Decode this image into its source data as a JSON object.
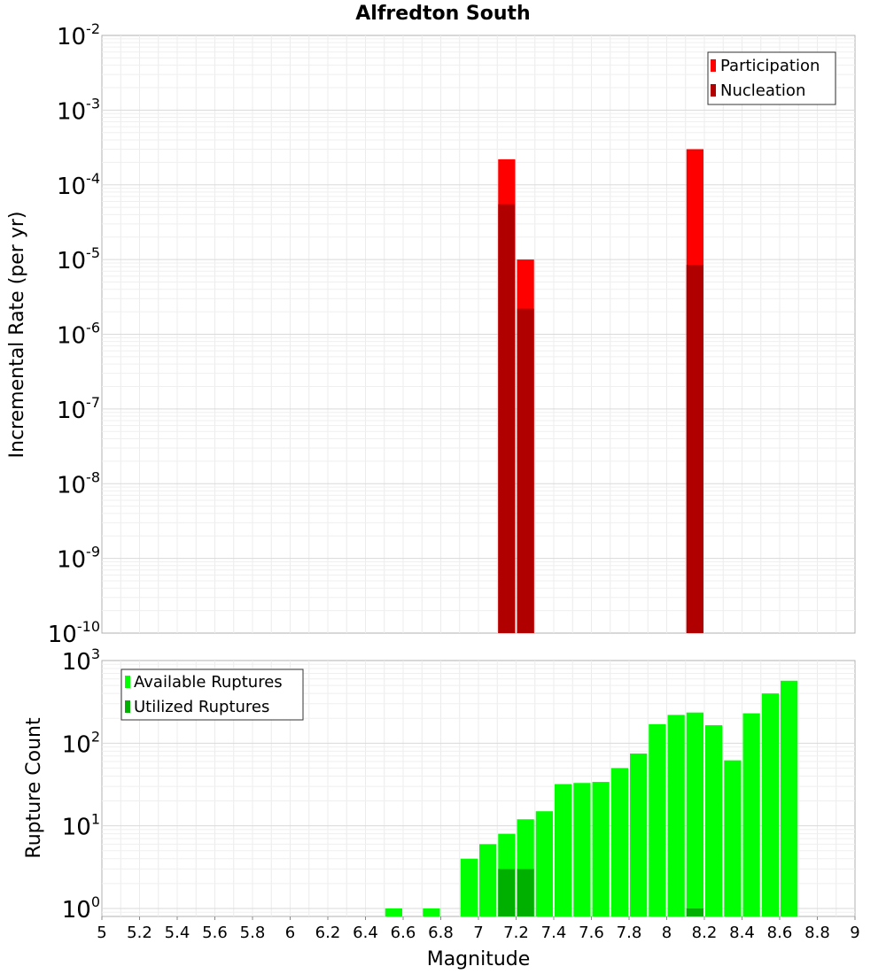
{
  "chart_data": [
    {
      "type": "bar",
      "title": "Alfredton South",
      "xlabel": "",
      "ylabel": "Incremental Rate (per yr)",
      "yscale": "log",
      "xlim": [
        5,
        9
      ],
      "ylim": [
        1e-10,
        0.01
      ],
      "bin_width": 0.1,
      "grid": true,
      "legend_position": "top-right",
      "yticks": [
        {
          "base": "10",
          "exp": "-2"
        },
        {
          "base": "10",
          "exp": "-3"
        },
        {
          "base": "10",
          "exp": "-4"
        },
        {
          "base": "10",
          "exp": "-5"
        },
        {
          "base": "10",
          "exp": "-6"
        },
        {
          "base": "10",
          "exp": "-7"
        },
        {
          "base": "10",
          "exp": "-8"
        },
        {
          "base": "10",
          "exp": "-9"
        },
        {
          "base": "10",
          "exp": "-10"
        }
      ],
      "series": [
        {
          "name": "Participation",
          "color": "#ff0000",
          "x": [
            7.15,
            7.25,
            8.15
          ],
          "values": [
            0.00022,
            1e-05,
            0.0003
          ]
        },
        {
          "name": "Nucleation",
          "color": "#b00000",
          "x": [
            7.15,
            7.25,
            8.15
          ],
          "values": [
            5.5e-05,
            2.2e-06,
            8.5e-06
          ]
        }
      ]
    },
    {
      "type": "bar",
      "title": "",
      "xlabel": "Magnitude",
      "ylabel": "Rupture Count",
      "yscale": "log",
      "xlim": [
        5,
        9
      ],
      "ylim": [
        0.8,
        1000
      ],
      "bin_width": 0.1,
      "grid": true,
      "legend_position": "top-left",
      "xticks": [
        "5",
        "5.2",
        "5.4",
        "5.6",
        "5.8",
        "6",
        "6.2",
        "6.4",
        "6.6",
        "6.8",
        "7",
        "7.2",
        "7.4",
        "7.6",
        "7.8",
        "8",
        "8.2",
        "8.4",
        "8.6",
        "8.8",
        "9"
      ],
      "yticks": [
        {
          "base": "10",
          "exp": "3"
        },
        {
          "base": "10",
          "exp": "2"
        },
        {
          "base": "10",
          "exp": "1"
        },
        {
          "base": "10",
          "exp": "0"
        }
      ],
      "series": [
        {
          "name": "Available Ruptures",
          "color": "#00ff00",
          "x": [
            6.55,
            6.75,
            6.95,
            7.05,
            7.15,
            7.25,
            7.35,
            7.45,
            7.55,
            7.65,
            7.75,
            7.85,
            7.95,
            8.05,
            8.15,
            8.25,
            8.35,
            8.45,
            8.55,
            8.65
          ],
          "values": [
            1,
            1,
            4,
            6,
            8,
            12,
            15,
            32,
            33,
            34,
            50,
            75,
            170,
            220,
            235,
            165,
            62,
            230,
            400,
            570
          ]
        },
        {
          "name": "Utilized Ruptures",
          "color": "#00b000",
          "x": [
            7.15,
            7.25,
            8.15
          ],
          "values": [
            3,
            3,
            1
          ]
        }
      ]
    }
  ]
}
